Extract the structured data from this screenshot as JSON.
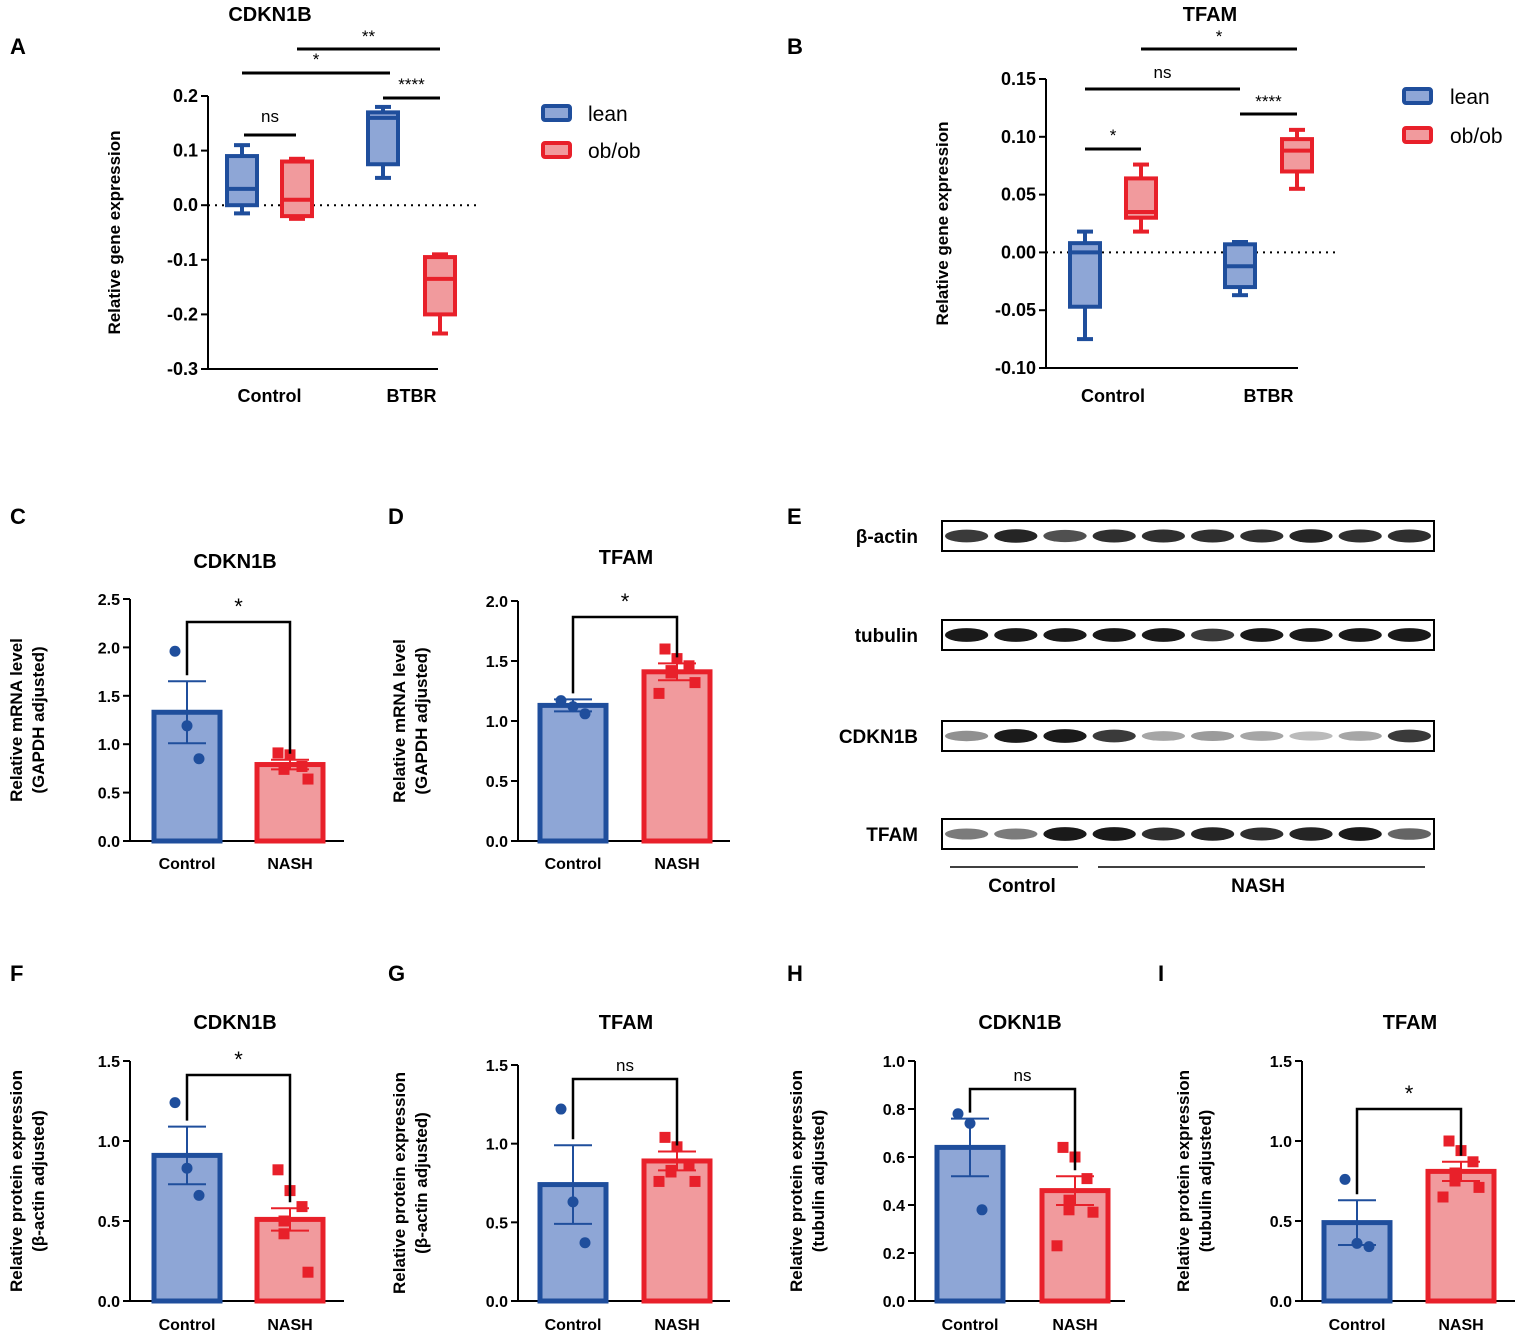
{
  "colors": {
    "lean": "#1f4e9c",
    "leanFill": "#8ea6d6",
    "obob": "#e8202a",
    "obobFill": "#f19a9d"
  },
  "panel_labels": [
    "A",
    "B",
    "C",
    "D",
    "E",
    "F",
    "G",
    "H",
    "I"
  ],
  "legend": {
    "lean": "lean",
    "obob": "ob/ob"
  },
  "chart_data": [
    {
      "id": "A",
      "type": "box",
      "title": "CDKN1B",
      "ylabel": "Relative gene expression",
      "ylim": [
        -0.3,
        0.2
      ],
      "yticks": [
        "0.2",
        "0.1",
        "0.0",
        "-0.1",
        "-0.2",
        "-0.3"
      ],
      "ytick_values": [
        0.2,
        0.1,
        0.0,
        -0.1,
        -0.2,
        -0.3
      ],
      "categories": [
        "Control",
        "BTBR"
      ],
      "series": [
        {
          "name": "lean",
          "boxes": [
            {
              "min": -0.015,
              "q1": 0.0,
              "median": 0.03,
              "q3": 0.09,
              "max": 0.11
            },
            {
              "min": 0.05,
              "q1": 0.075,
              "median": 0.16,
              "q3": 0.17,
              "max": 0.18
            }
          ]
        },
        {
          "name": "ob/ob",
          "boxes": [
            {
              "min": -0.025,
              "q1": -0.02,
              "median": 0.01,
              "q3": 0.08,
              "max": 0.085
            },
            {
              "min": -0.235,
              "q1": -0.2,
              "median": -0.135,
              "q3": -0.095,
              "max": -0.09
            }
          ]
        }
      ],
      "comparisons": [
        {
          "from": "Control lean",
          "to": "Control ob/ob",
          "label": "ns"
        },
        {
          "from": "Control lean",
          "to": "BTBR lean",
          "label": "*"
        },
        {
          "from": "Control ob/ob",
          "to": "BTBR ob/ob",
          "label": "**"
        },
        {
          "from": "BTBR lean",
          "to": "BTBR ob/ob",
          "label": "****"
        }
      ]
    },
    {
      "id": "B",
      "type": "box",
      "title": "TFAM",
      "ylabel": "Relative gene expression",
      "ylim": [
        -0.1,
        0.15
      ],
      "yticks": [
        "0.15",
        "0.10",
        "0.05",
        "0.00",
        "-0.05",
        "-0.10"
      ],
      "ytick_values": [
        0.15,
        0.1,
        0.05,
        0.0,
        -0.05,
        -0.1
      ],
      "categories": [
        "Control",
        "BTBR"
      ],
      "series": [
        {
          "name": "lean",
          "boxes": [
            {
              "min": -0.075,
              "q1": -0.047,
              "median": 0.0,
              "q3": 0.008,
              "max": 0.018
            },
            {
              "min": -0.037,
              "q1": -0.03,
              "median": -0.012,
              "q3": 0.007,
              "max": 0.009
            }
          ]
        },
        {
          "name": "ob/ob",
          "boxes": [
            {
              "min": 0.018,
              "q1": 0.03,
              "median": 0.035,
              "q3": 0.064,
              "max": 0.076
            },
            {
              "min": 0.055,
              "q1": 0.07,
              "median": 0.088,
              "q3": 0.098,
              "max": 0.106
            }
          ]
        }
      ],
      "comparisons": [
        {
          "from": "Control lean",
          "to": "Control ob/ob",
          "label": "*"
        },
        {
          "from": "Control lean",
          "to": "BTBR lean",
          "label": "ns"
        },
        {
          "from": "Control ob/ob",
          "to": "BTBR ob/ob",
          "label": "*"
        },
        {
          "from": "BTBR lean",
          "to": "BTBR ob/ob",
          "label": "****"
        }
      ]
    },
    {
      "id": "C",
      "type": "bar",
      "title": "CDKN1B",
      "ylabel1": "Relative mRNA level",
      "ylabel2": "(GAPDH adjusted)",
      "ylim": [
        0,
        2.5
      ],
      "yticks": [
        "2.5",
        "2.0",
        "1.5",
        "1.0",
        "0.5",
        "0.0"
      ],
      "ytick_values": [
        2.5,
        2.0,
        1.5,
        1.0,
        0.5,
        0.0
      ],
      "categories": [
        "Control",
        "NASH"
      ],
      "means": [
        1.33,
        0.79
      ],
      "sem": [
        0.32,
        0.05
      ],
      "points": [
        [
          1.96,
          1.19,
          0.85
        ],
        [
          0.91,
          0.89,
          0.77,
          0.75,
          0.74,
          0.64
        ]
      ],
      "sig": "*"
    },
    {
      "id": "D",
      "type": "bar",
      "title": "TFAM",
      "ylabel1": "Relative mRNA level",
      "ylabel2": "(GAPDH adjusted)",
      "ylim": [
        0,
        2.0
      ],
      "yticks": [
        "2.0",
        "1.5",
        "1.0",
        "0.5",
        "0.0"
      ],
      "ytick_values": [
        2.0,
        1.5,
        1.0,
        0.5,
        0.0
      ],
      "categories": [
        "Control",
        "NASH"
      ],
      "means": [
        1.13,
        1.41
      ],
      "sem": [
        0.05,
        0.07
      ],
      "points": [
        [
          1.17,
          1.12,
          1.06
        ],
        [
          1.6,
          1.52,
          1.46,
          1.42,
          1.4,
          1.32,
          1.23
        ]
      ],
      "sig": "*"
    },
    {
      "id": "F",
      "type": "bar",
      "title": "CDKN1B",
      "ylabel1": "Relative protein expression",
      "ylabel2": "(β-actin adjusted)",
      "ylim": [
        0,
        1.5
      ],
      "yticks": [
        "1.5",
        "1.0",
        "0.5",
        "0.0"
      ],
      "ytick_values": [
        1.5,
        1.0,
        0.5,
        0.0
      ],
      "categories": [
        "Control",
        "NASH"
      ],
      "means": [
        0.91,
        0.51
      ],
      "sem": [
        0.18,
        0.07
      ],
      "points": [
        [
          1.24,
          0.83,
          0.66
        ],
        [
          0.82,
          0.69,
          0.59,
          0.5,
          0.42,
          0.18
        ]
      ],
      "sig": "*"
    },
    {
      "id": "G",
      "type": "bar",
      "title": "TFAM",
      "ylabel1": "Relative protein expression",
      "ylabel2": "(β-actin adjusted)",
      "ylim": [
        0,
        1.5
      ],
      "yticks": [
        "1.5",
        "1.0",
        "0.5",
        "0.0"
      ],
      "ytick_values": [
        1.5,
        1.0,
        0.5,
        0.0
      ],
      "categories": [
        "Control",
        "NASH"
      ],
      "means": [
        0.74,
        0.89
      ],
      "sem": [
        0.25,
        0.06
      ],
      "points": [
        [
          1.22,
          0.63,
          0.37
        ],
        [
          1.04,
          0.98,
          0.87,
          0.83,
          0.82,
          0.76,
          0.76
        ]
      ],
      "sig": "ns"
    },
    {
      "id": "H",
      "type": "bar",
      "title": "CDKN1B",
      "ylabel1": "Relative protein expression",
      "ylabel2": "(tubulin adjusted)",
      "ylim": [
        0,
        1.0
      ],
      "yticks": [
        "1.0",
        "0.8",
        "0.6",
        "0.4",
        "0.2",
        "0.0"
      ],
      "ytick_values": [
        1.0,
        0.8,
        0.6,
        0.4,
        0.2,
        0.0
      ],
      "categories": [
        "Control",
        "NASH"
      ],
      "means": [
        0.64,
        0.46
      ],
      "sem": [
        0.12,
        0.06
      ],
      "points": [
        [
          0.78,
          0.74,
          0.38
        ],
        [
          0.64,
          0.6,
          0.51,
          0.42,
          0.38,
          0.37,
          0.23
        ]
      ],
      "sig": "ns"
    },
    {
      "id": "I",
      "type": "bar",
      "title": "TFAM",
      "ylabel1": "Relative protein expression",
      "ylabel2": "(tubulin adjusted)",
      "ylim": [
        0,
        1.5
      ],
      "yticks": [
        "1.5",
        "1.0",
        "0.5",
        "0.0"
      ],
      "ytick_values": [
        1.5,
        1.0,
        0.5,
        0.0
      ],
      "categories": [
        "Control",
        "NASH"
      ],
      "means": [
        0.49,
        0.81
      ],
      "sem": [
        0.14,
        0.06
      ],
      "points": [
        [
          0.76,
          0.36,
          0.34
        ],
        [
          1.0,
          0.94,
          0.87,
          0.8,
          0.75,
          0.71,
          0.65
        ]
      ],
      "sig": "*"
    }
  ],
  "blot": {
    "rows": [
      "β-actin",
      "tubulin",
      "CDKN1B",
      "TFAM"
    ],
    "groups": [
      "Control",
      "NASH"
    ],
    "lanes": 10,
    "intensities": [
      [
        0.8,
        0.9,
        0.7,
        0.85,
        0.85,
        0.85,
        0.85,
        0.9,
        0.85,
        0.85
      ],
      [
        0.95,
        0.95,
        0.95,
        0.95,
        0.95,
        0.8,
        0.95,
        0.95,
        0.95,
        0.95
      ],
      [
        0.4,
        0.95,
        0.95,
        0.8,
        0.3,
        0.35,
        0.3,
        0.2,
        0.3,
        0.8
      ],
      [
        0.5,
        0.5,
        0.95,
        0.95,
        0.85,
        0.9,
        0.85,
        0.9,
        0.95,
        0.6
      ]
    ]
  }
}
